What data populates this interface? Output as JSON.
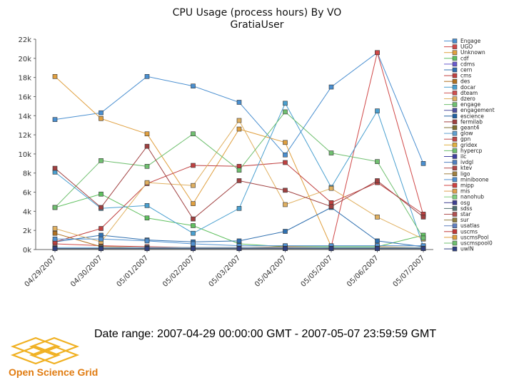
{
  "chart_data": {
    "type": "line",
    "title": "CPU Usage (process hours) By VO",
    "subtitle": "GratiaUser",
    "categories": [
      "04/29/2007",
      "04/30/2007",
      "05/01/2007",
      "05/02/2007",
      "05/03/2007",
      "05/04/2007",
      "05/05/2007",
      "05/06/2007",
      "05/07/2007"
    ],
    "y_ticks": [
      "0k",
      "2k",
      "4k",
      "6k",
      "8k",
      "10k",
      "12k",
      "14k",
      "16k",
      "18k",
      "20k",
      "22k"
    ],
    "ylim": [
      0,
      22000
    ],
    "grid": false,
    "legend_position": "right",
    "series": [
      {
        "name": "Engage",
        "color": "#4a8fd0",
        "values": [
          13600,
          14300,
          18100,
          17100,
          15400,
          9900,
          17000,
          20600,
          9000
        ]
      },
      {
        "name": "UGO",
        "color": "#d04848",
        "values": [
          600,
          400,
          300,
          200,
          200,
          200,
          300,
          20600,
          3600
        ]
      },
      {
        "name": "Unknown",
        "color": "#e0a040",
        "values": [
          18100,
          13700,
          12100,
          4800,
          12600,
          11200,
          300,
          300,
          200
        ]
      },
      {
        "name": "cdf",
        "color": "#60c060",
        "values": [
          4400,
          5800,
          3300,
          2500,
          600,
          300,
          300,
          300,
          1500
        ]
      },
      {
        "name": "cdms",
        "color": "#6a5acd",
        "values": [
          100,
          100,
          100,
          100,
          100,
          100,
          100,
          100,
          100
        ]
      },
      {
        "name": "cern",
        "color": "#3070b0",
        "values": [
          800,
          1500,
          1000,
          800,
          900,
          1900,
          4400,
          900,
          300
        ]
      },
      {
        "name": "cms",
        "color": "#c04040",
        "values": [
          800,
          2200,
          6900,
          8800,
          8700,
          9100,
          4900,
          7000,
          3700
        ]
      },
      {
        "name": "des",
        "color": "#b07020",
        "values": [
          1700,
          300,
          200,
          200,
          200,
          300,
          200,
          200,
          200
        ]
      },
      {
        "name": "docar",
        "color": "#4aa0d0",
        "values": [
          8100,
          4300,
          4600,
          1700,
          4300,
          15300,
          6500,
          14500,
          300
        ]
      },
      {
        "name": "dteam",
        "color": "#d05050",
        "values": [
          100,
          100,
          100,
          100,
          100,
          100,
          100,
          100,
          100
        ]
      },
      {
        "name": "dzero",
        "color": "#e0b060",
        "values": [
          2200,
          800,
          7000,
          6700,
          13500,
          4700,
          6400,
          3400,
          1100
        ]
      },
      {
        "name": "engage",
        "color": "#70c070",
        "values": [
          4400,
          9300,
          8700,
          12100,
          8300,
          14400,
          10100,
          9200,
          1200
        ]
      },
      {
        "name": "engagement",
        "color": "#5050a0",
        "values": [
          100,
          100,
          100,
          100,
          100,
          100,
          100,
          100,
          100
        ]
      },
      {
        "name": "escience",
        "color": "#2060a0",
        "values": [
          100,
          100,
          100,
          100,
          100,
          100,
          100,
          100,
          100
        ]
      },
      {
        "name": "fermilab",
        "color": "#a04040",
        "values": [
          8500,
          4400,
          10800,
          3200,
          7200,
          6200,
          4500,
          7200,
          3400
        ]
      },
      {
        "name": "geant4",
        "color": "#807030",
        "values": [
          100,
          100,
          100,
          100,
          100,
          100,
          100,
          100,
          100
        ]
      },
      {
        "name": "glow",
        "color": "#60a0d0",
        "values": [
          200,
          200,
          200,
          200,
          200,
          200,
          200,
          200,
          200
        ]
      },
      {
        "name": "gpn",
        "color": "#c04848",
        "values": [
          100,
          100,
          100,
          100,
          100,
          100,
          100,
          100,
          100
        ]
      },
      {
        "name": "gridex",
        "color": "#e0b040",
        "values": [
          100,
          100,
          100,
          100,
          100,
          100,
          100,
          100,
          100
        ]
      },
      {
        "name": "hypercp",
        "color": "#70c070",
        "values": [
          100,
          100,
          100,
          100,
          100,
          100,
          100,
          100,
          100
        ]
      },
      {
        "name": "ilc",
        "color": "#4040a0",
        "values": [
          100,
          100,
          100,
          100,
          100,
          100,
          100,
          100,
          100
        ]
      },
      {
        "name": "ivdgl",
        "color": "#5080c0",
        "values": [
          100,
          100,
          100,
          100,
          100,
          100,
          100,
          100,
          100
        ]
      },
      {
        "name": "ktev",
        "color": "#b04848",
        "values": [
          100,
          100,
          100,
          100,
          100,
          100,
          100,
          100,
          100
        ]
      },
      {
        "name": "ligo",
        "color": "#a08040",
        "values": [
          100,
          100,
          100,
          100,
          100,
          100,
          100,
          100,
          100
        ]
      },
      {
        "name": "miniboone",
        "color": "#5090d0",
        "values": [
          1100,
          1100,
          900,
          600,
          400,
          400,
          400,
          400,
          400
        ]
      },
      {
        "name": "mipp",
        "color": "#d04040",
        "values": [
          100,
          100,
          100,
          100,
          100,
          100,
          100,
          100,
          100
        ]
      },
      {
        "name": "mis",
        "color": "#e0a050",
        "values": [
          100,
          100,
          100,
          100,
          100,
          100,
          100,
          100,
          100
        ]
      },
      {
        "name": "nanohub",
        "color": "#80d080",
        "values": [
          100,
          100,
          100,
          100,
          100,
          100,
          100,
          100,
          100
        ]
      },
      {
        "name": "osg",
        "color": "#404090",
        "values": [
          100,
          100,
          100,
          100,
          100,
          100,
          100,
          100,
          100
        ]
      },
      {
        "name": "sdss",
        "color": "#507070",
        "values": [
          100,
          100,
          100,
          100,
          100,
          100,
          100,
          100,
          100
        ]
      },
      {
        "name": "star",
        "color": "#b05050",
        "values": [
          100,
          100,
          100,
          100,
          100,
          100,
          100,
          100,
          100
        ]
      },
      {
        "name": "sur",
        "color": "#908040",
        "values": [
          100,
          100,
          100,
          100,
          100,
          100,
          100,
          100,
          100
        ]
      },
      {
        "name": "usatlas",
        "color": "#6080c0",
        "values": [
          100,
          100,
          100,
          100,
          100,
          100,
          100,
          100,
          100
        ]
      },
      {
        "name": "uscms",
        "color": "#c03838",
        "values": [
          100,
          100,
          100,
          100,
          100,
          100,
          100,
          100,
          100
        ]
      },
      {
        "name": "uscmsPool",
        "color": "#e0a040",
        "values": [
          100,
          100,
          100,
          100,
          100,
          100,
          100,
          100,
          100
        ]
      },
      {
        "name": "uscmspool0",
        "color": "#70c070",
        "values": [
          100,
          100,
          100,
          100,
          100,
          100,
          100,
          100,
          100
        ]
      },
      {
        "name": "uwlN",
        "color": "#304080",
        "values": [
          100,
          100,
          100,
          100,
          100,
          100,
          100,
          100,
          100
        ]
      }
    ]
  },
  "footer": {
    "date_range": "Date range: 2007-04-29 00:00:00 GMT - 2007-05-07 23:59:59 GMT",
    "logo_text": "Open Science Grid"
  }
}
